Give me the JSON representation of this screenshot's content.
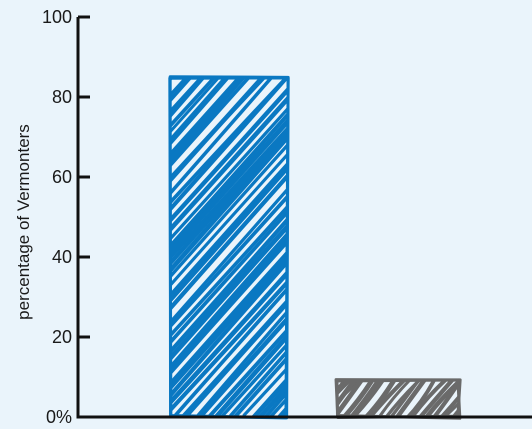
{
  "chart_data": {
    "type": "bar",
    "title": "",
    "xlabel": "",
    "ylabel": "percentage of Vermonters",
    "categories": [
      "",
      ""
    ],
    "values": [
      85,
      9
    ],
    "colors": [
      "#0a78c2",
      "#6a6a6a"
    ],
    "ylim": [
      0,
      100
    ],
    "yticks": [
      0,
      20,
      40,
      60,
      80,
      100
    ],
    "ytick_labels": [
      "0%",
      "20",
      "40",
      "60",
      "80",
      "100"
    ],
    "grid": false,
    "style": "hand-drawn hatched fill"
  }
}
